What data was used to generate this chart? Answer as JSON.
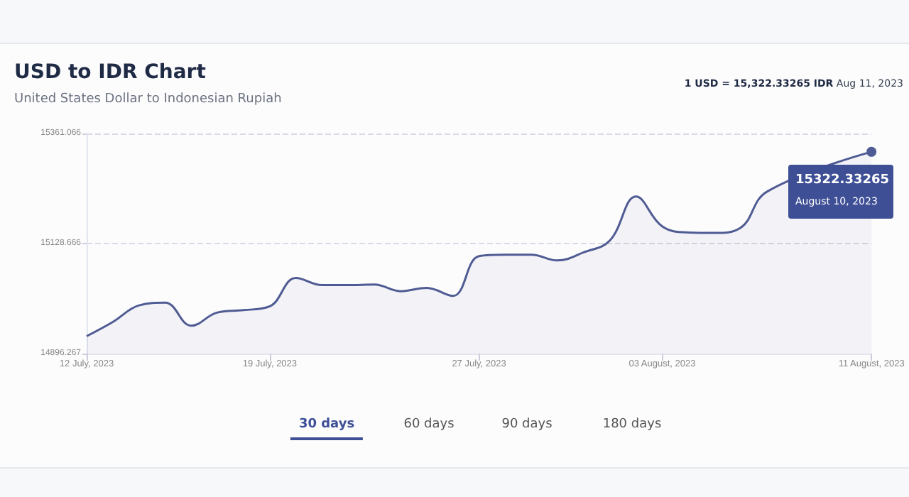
{
  "chart_data": {
    "type": "area",
    "title": "USD to IDR Chart",
    "subtitle": "United States Dollar to Indonesian Rupiah",
    "annotations": [
      "1 USD = 15,322.33265 IDR",
      "Aug 11, 2023",
      "15322.33265",
      "August 10, 2023",
      "30 days",
      "60 days",
      "90 days",
      "180 days"
    ],
    "categories": [
      "12 July, 2023",
      null,
      null,
      null,
      null,
      null,
      null,
      "19 July, 2023",
      null,
      null,
      null,
      null,
      null,
      null,
      null,
      "27 July, 2023",
      null,
      null,
      null,
      null,
      null,
      null,
      "03 August, 2023",
      null,
      null,
      null,
      null,
      null,
      null,
      null,
      "11 August, 2023"
    ],
    "series": [
      {
        "color": "#4f5b93",
        "values": [
          14933,
          14963,
          14998,
          15004,
          14955,
          14983,
          14988,
          14996,
          15056,
          15041,
          15041,
          15042,
          15028,
          15035,
          15018,
          15102,
          15105,
          15105,
          15093,
          15110,
          15135,
          15228,
          15165,
          15152,
          15151,
          15162,
          15238,
          null,
          null,
          null,
          15322.33265
        ]
      }
    ],
    "ylim": [
      14896.267,
      15361.066
    ],
    "yticks": [
      14896.267,
      15128.666,
      15361.066
    ],
    "grid": "y"
  }
}
